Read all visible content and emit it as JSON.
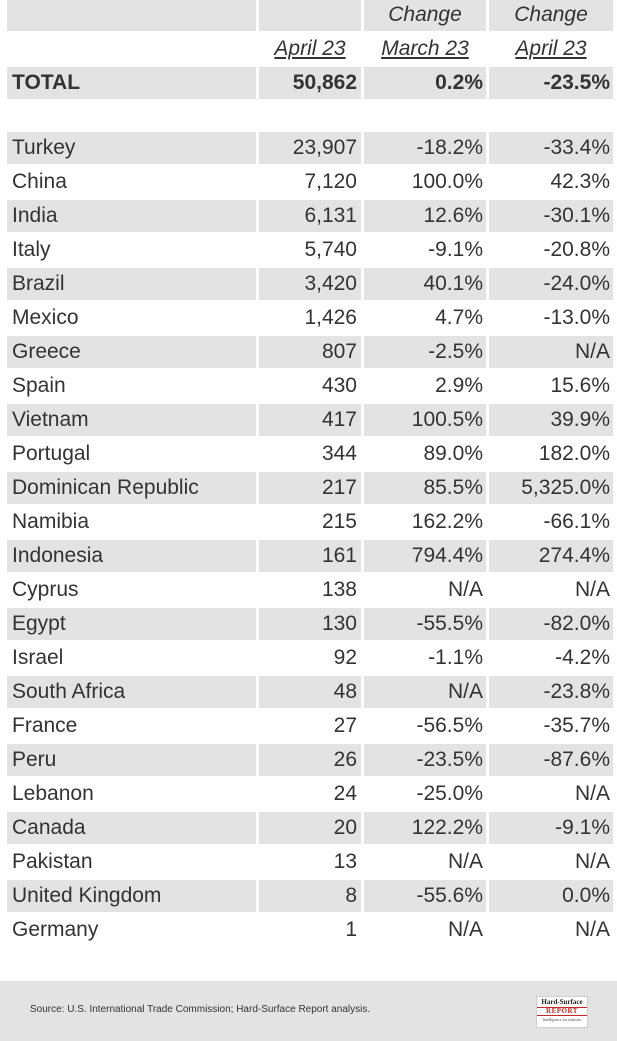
{
  "header": {
    "row1": {
      "c1": "",
      "c2": "Change",
      "c3": "Change"
    },
    "row2": {
      "c1": "April 23",
      "c2": "March 23",
      "c3": "April 23"
    }
  },
  "total": {
    "label": "TOTAL",
    "value": "50,862",
    "change_march": "0.2%",
    "change_april": "-23.5%"
  },
  "rows": [
    {
      "country": "Turkey",
      "value": "23,907",
      "change_march": "-18.2%",
      "change_april": "-33.4%"
    },
    {
      "country": "China",
      "value": "7,120",
      "change_march": "100.0%",
      "change_april": "42.3%"
    },
    {
      "country": "India",
      "value": "6,131",
      "change_march": "12.6%",
      "change_april": "-30.1%"
    },
    {
      "country": "Italy",
      "value": "5,740",
      "change_march": "-9.1%",
      "change_april": "-20.8%"
    },
    {
      "country": "Brazil",
      "value": "3,420",
      "change_march": "40.1%",
      "change_april": "-24.0%"
    },
    {
      "country": "Mexico",
      "value": "1,426",
      "change_march": "4.7%",
      "change_april": "-13.0%"
    },
    {
      "country": "Greece",
      "value": "807",
      "change_march": "-2.5%",
      "change_april": "N/A"
    },
    {
      "country": "Spain",
      "value": "430",
      "change_march": "2.9%",
      "change_april": "15.6%"
    },
    {
      "country": "Vietnam",
      "value": "417",
      "change_march": "100.5%",
      "change_april": "39.9%"
    },
    {
      "country": "Portugal",
      "value": "344",
      "change_march": "89.0%",
      "change_april": "182.0%"
    },
    {
      "country": "Dominican Republic",
      "value": "217",
      "change_march": "85.5%",
      "change_april": "5,325.0%"
    },
    {
      "country": "Namibia",
      "value": "215",
      "change_march": "162.2%",
      "change_april": "-66.1%"
    },
    {
      "country": "Indonesia",
      "value": "161",
      "change_march": "794.4%",
      "change_april": "274.4%"
    },
    {
      "country": "Cyprus",
      "value": "138",
      "change_march": "N/A",
      "change_april": "N/A"
    },
    {
      "country": "Egypt",
      "value": "130",
      "change_march": "-55.5%",
      "change_april": "-82.0%"
    },
    {
      "country": "Israel",
      "value": "92",
      "change_march": "-1.1%",
      "change_april": "-4.2%"
    },
    {
      "country": "South Africa",
      "value": "48",
      "change_march": "N/A",
      "change_april": "-23.8%"
    },
    {
      "country": "France",
      "value": "27",
      "change_march": "-56.5%",
      "change_april": "-35.7%"
    },
    {
      "country": "Peru",
      "value": "26",
      "change_march": "-23.5%",
      "change_april": "-87.6%"
    },
    {
      "country": "Lebanon",
      "value": "24",
      "change_march": "-25.0%",
      "change_april": "N/A"
    },
    {
      "country": "Canada",
      "value": "20",
      "change_march": "122.2%",
      "change_april": "-9.1%"
    },
    {
      "country": "Pakistan",
      "value": "13",
      "change_march": "N/A",
      "change_april": "N/A"
    },
    {
      "country": "United Kingdom",
      "value": "8",
      "change_march": "-55.6%",
      "change_april": "0.0%"
    },
    {
      "country": "Germany",
      "value": "1",
      "change_march": "N/A",
      "change_april": "N/A"
    }
  ],
  "footer": {
    "source": "Source: U.S. International Trade Commission; Hard-Surface Report analysis.",
    "logo": {
      "line1": "Hard-Surface",
      "line2": "REPORT",
      "line3": "Intelligence for industry"
    }
  }
}
